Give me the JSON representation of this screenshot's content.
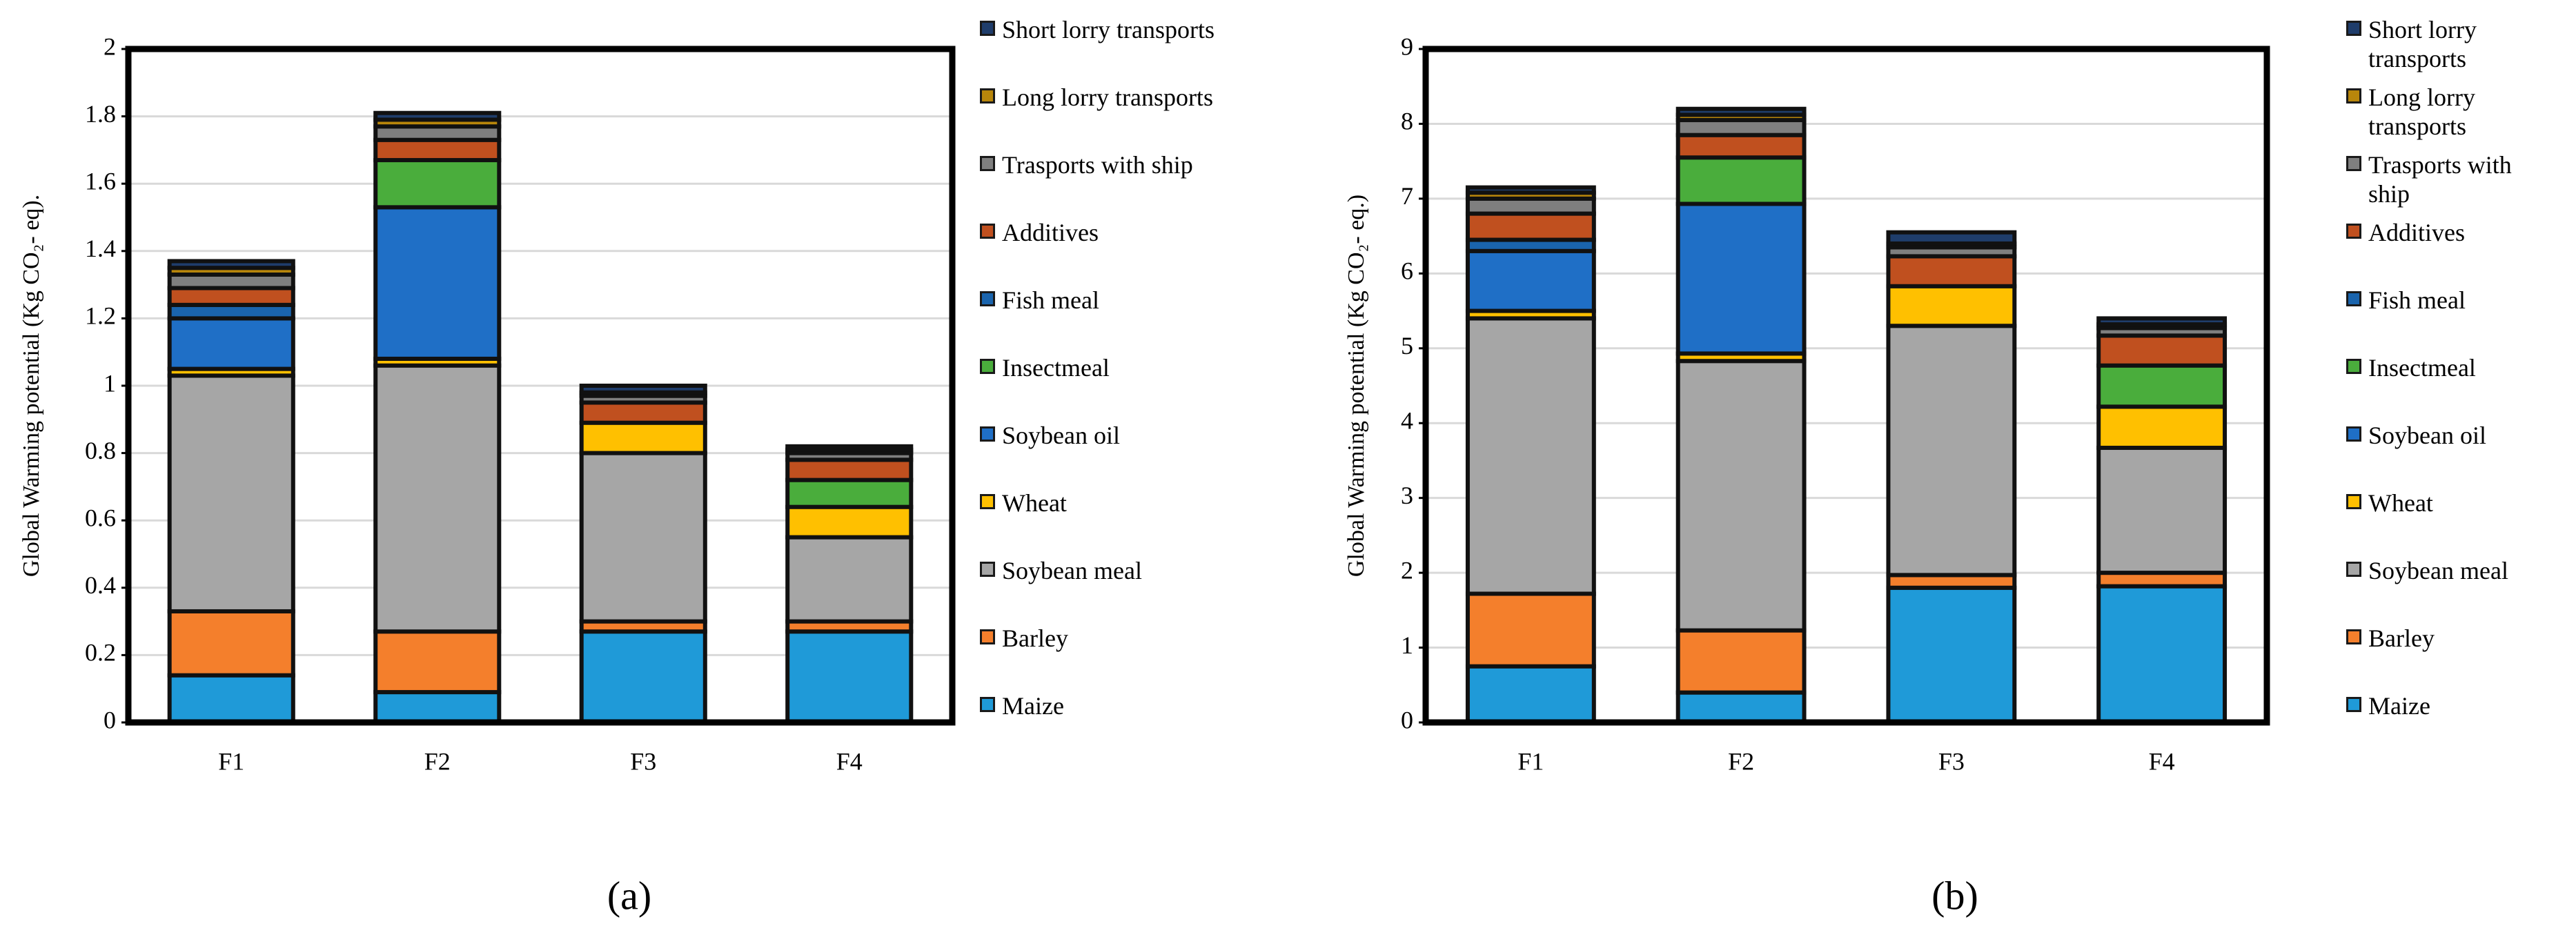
{
  "chart_data": [
    {
      "type": "bar",
      "stacked": true,
      "label": "(a)",
      "ylabel": "Global Warming potential (Kg CO₂- eq).",
      "categories": [
        "F1",
        "F2",
        "F3",
        "F4"
      ],
      "ylim": [
        0,
        2
      ],
      "yticks": [
        0,
        0.2,
        0.4,
        0.6,
        0.8,
        1,
        1.2,
        1.4,
        1.6,
        1.8,
        2
      ],
      "grid": true,
      "series": [
        {
          "name": "Maize",
          "color": "#1f9ad8",
          "values": [
            0.14,
            0.09,
            0.27,
            0.27
          ]
        },
        {
          "name": "Barley",
          "color": "#f47f2c",
          "values": [
            0.19,
            0.18,
            0.03,
            0.03
          ]
        },
        {
          "name": "Soybean meal",
          "color": "#a6a6a6",
          "values": [
            0.7,
            0.79,
            0.5,
            0.25
          ]
        },
        {
          "name": "Wheat",
          "color": "#ffc000",
          "values": [
            0.02,
            0.02,
            0.09,
            0.09
          ]
        },
        {
          "name": "Soybean oil",
          "color": "#1f6fc6",
          "values": [
            0.15,
            0.45,
            0,
            0
          ]
        },
        {
          "name": "Insectmeal",
          "color": "#4aad3c",
          "values": [
            0,
            0.14,
            0,
            0.08
          ]
        },
        {
          "name": "Fish meal",
          "color": "#1a64ad",
          "values": [
            0.04,
            0,
            0,
            0
          ]
        },
        {
          "name": "Additives",
          "color": "#c0501f",
          "values": [
            0.05,
            0.06,
            0.06,
            0.06
          ]
        },
        {
          "name": "Trasports with ship",
          "color": "#7f7f7f",
          "values": [
            0.04,
            0.04,
            0.02,
            0.02
          ]
        },
        {
          "name": "Long lorry transports",
          "color": "#b8860b",
          "values": [
            0.02,
            0.02,
            0.01,
            0.01
          ]
        },
        {
          "name": "Short lorry transports",
          "color": "#1f3d6b",
          "values": [
            0.02,
            0.02,
            0.02,
            0.01
          ]
        }
      ]
    },
    {
      "type": "bar",
      "stacked": true,
      "label": "(b)",
      "ylabel": "Global Warming potential (Kg CO₂- eq.)",
      "categories": [
        "F1",
        "F2",
        "F3",
        "F4"
      ],
      "ylim": [
        0,
        9
      ],
      "yticks": [
        0,
        1,
        2,
        3,
        4,
        5,
        6,
        7,
        8,
        9
      ],
      "grid": true,
      "series": [
        {
          "name": "Maize",
          "color": "#1f9ad8",
          "values": [
            0.75,
            0.4,
            1.8,
            1.82
          ]
        },
        {
          "name": "Barley",
          "color": "#f47f2c",
          "values": [
            0.97,
            0.83,
            0.17,
            0.18
          ]
        },
        {
          "name": "Soybean meal",
          "color": "#a6a6a6",
          "values": [
            3.68,
            3.6,
            3.33,
            1.67
          ]
        },
        {
          "name": "Wheat",
          "color": "#ffc000",
          "values": [
            0.1,
            0.1,
            0.53,
            0.55
          ]
        },
        {
          "name": "Soybean oil",
          "color": "#1f6fc6",
          "values": [
            0.8,
            2.0,
            0,
            0
          ]
        },
        {
          "name": "Insectmeal",
          "color": "#4aad3c",
          "values": [
            0,
            0.62,
            0,
            0.55
          ]
        },
        {
          "name": "Fish meal",
          "color": "#1a64ad",
          "values": [
            0.15,
            0,
            0,
            0
          ]
        },
        {
          "name": "Additives",
          "color": "#c0501f",
          "values": [
            0.35,
            0.3,
            0.4,
            0.4
          ]
        },
        {
          "name": "Trasports with ship",
          "color": "#7f7f7f",
          "values": [
            0.2,
            0.2,
            0.12,
            0.1
          ]
        },
        {
          "name": "Long lorry transports",
          "color": "#b8860b",
          "values": [
            0.08,
            0.07,
            0.05,
            0.05
          ]
        },
        {
          "name": "Short lorry transports",
          "color": "#1f3d6b",
          "values": [
            0.07,
            0.08,
            0.15,
            0.08
          ]
        }
      ]
    }
  ]
}
